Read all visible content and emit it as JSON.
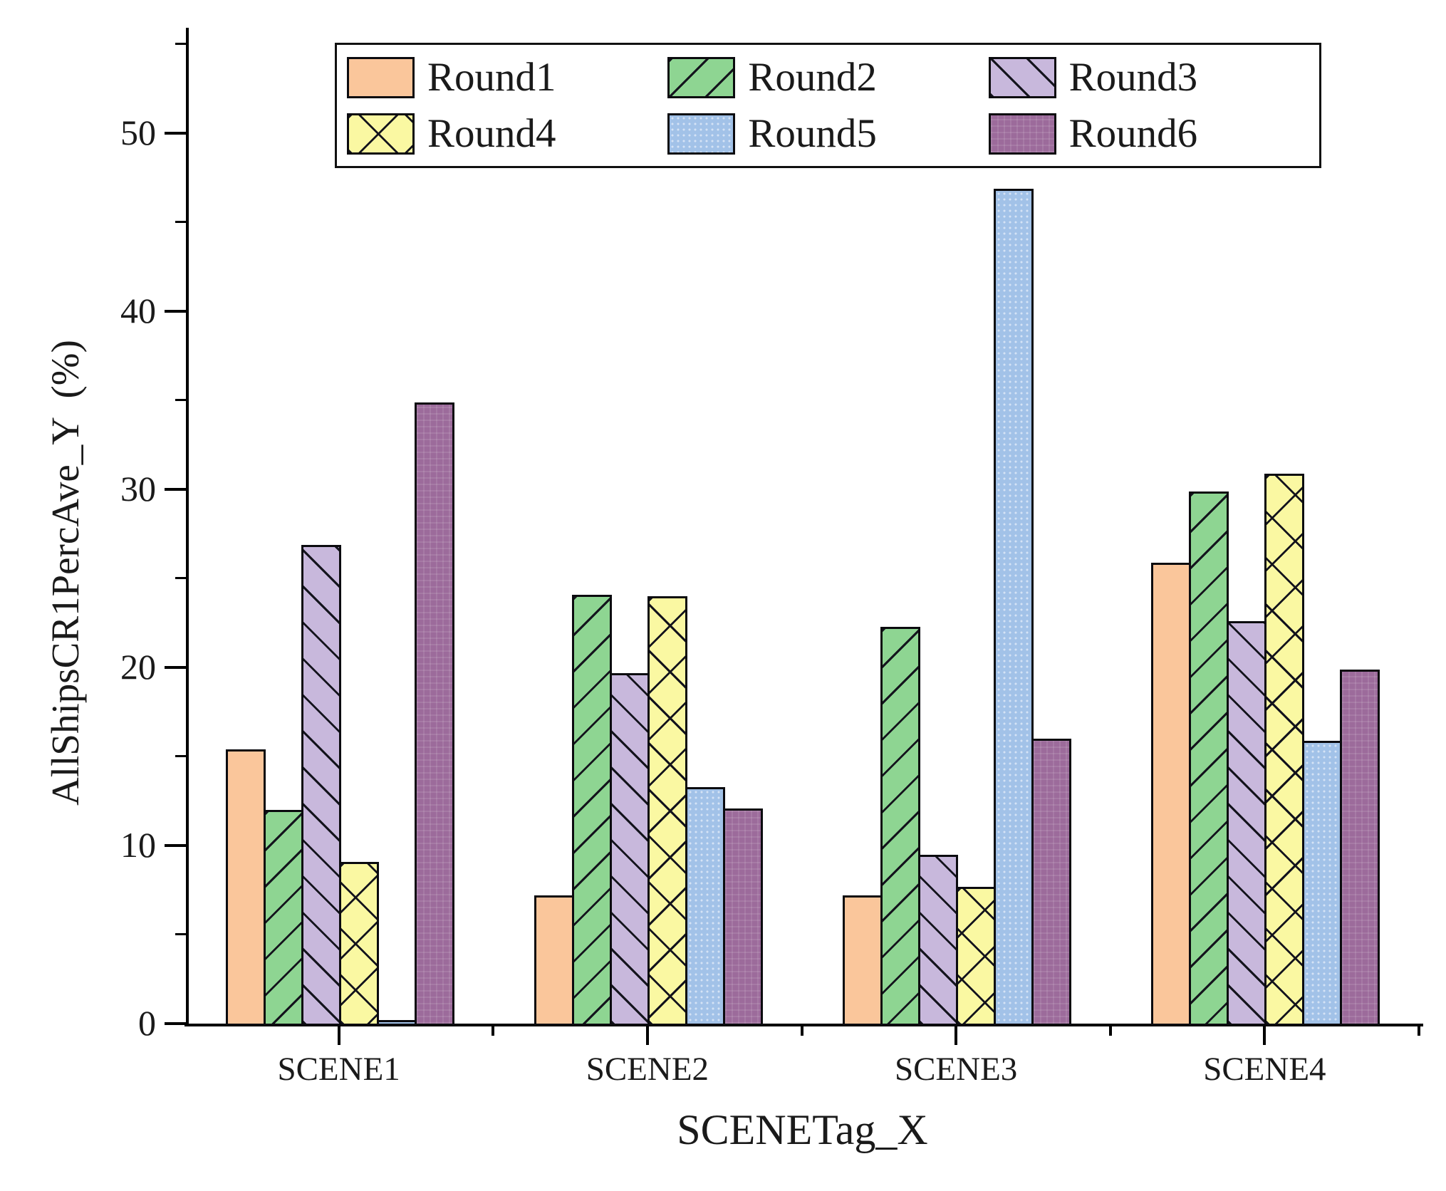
{
  "chart_data": {
    "type": "bar",
    "title": "",
    "xlabel": "SCENETag_X",
    "ylabel": "AllShipsCR1PercAve_Y  (%)",
    "categories": [
      "SCENE1",
      "SCENE2",
      "SCENE3",
      "SCENE4"
    ],
    "series": [
      {
        "name": "Round1",
        "color": "#FAC69B",
        "hatch": "none",
        "values": [
          15.5,
          7.3,
          7.3,
          26.0
        ]
      },
      {
        "name": "Round2",
        "color": "#8ED592",
        "hatch": "diag-up",
        "values": [
          12.1,
          24.2,
          22.4,
          30.0
        ]
      },
      {
        "name": "Round3",
        "color": "#C8B8DC",
        "hatch": "diag-down",
        "values": [
          27.0,
          19.8,
          9.6,
          22.7
        ]
      },
      {
        "name": "Round4",
        "color": "#FAF8A2",
        "hatch": "cross-diag",
        "values": [
          9.2,
          24.1,
          7.8,
          31.0
        ]
      },
      {
        "name": "Round5",
        "color": "#A2C2E8",
        "hatch": "dots",
        "values": [
          0.3,
          13.4,
          47.0,
          16.0
        ]
      },
      {
        "name": "Round6",
        "color": "#9C6B9B",
        "hatch": "grid",
        "values": [
          35.0,
          12.2,
          16.1,
          20.0
        ]
      }
    ],
    "y_axis": {
      "major_ticks": [
        0,
        10,
        20,
        30,
        40,
        50
      ],
      "minor_ticks": [
        5,
        15,
        25,
        35,
        45,
        55
      ],
      "ylim": [
        0,
        53
      ]
    },
    "legend": {
      "position": "top",
      "entries": [
        "Round1",
        "Round2",
        "Round3",
        "Round4",
        "Round5",
        "Round6"
      ]
    },
    "grid": "off",
    "bar_edge_color": "#0b0b0f"
  }
}
